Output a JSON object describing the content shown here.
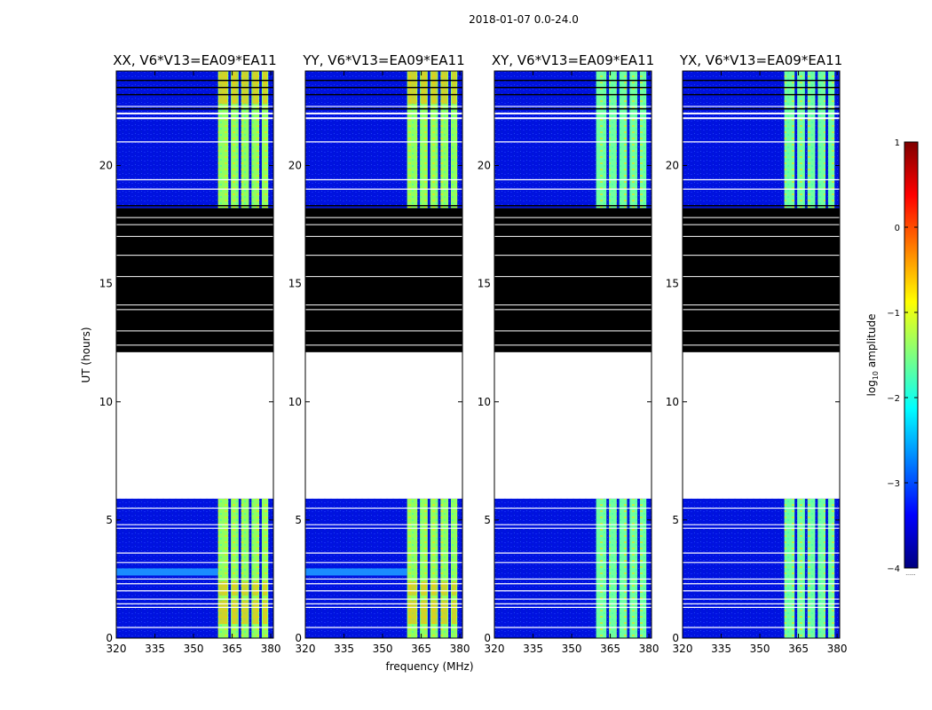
{
  "figure_title": "2018-01-07 0.0-24.0",
  "chart_data": {
    "type": "heatmap",
    "title": "2018-01-07 0.0-24.0",
    "xlabel": "frequency (MHz)",
    "ylabel": "UT (hours)",
    "xlim": [
      320,
      381
    ],
    "ylim": [
      0,
      24
    ],
    "xticks": [
      320,
      335,
      350,
      365,
      380
    ],
    "yticks": [
      0,
      5,
      10,
      15,
      20
    ],
    "panels": [
      {
        "title": "XX, V6*V13=EA09*EA11",
        "polarization": "XX"
      },
      {
        "title": "YY, V6*V13=EA09*EA11",
        "polarization": "YY"
      },
      {
        "title": "XY, V6*V13=EA09*EA11",
        "polarization": "XY"
      },
      {
        "title": "YX, V6*V13=EA09*EA11",
        "polarization": "YX"
      }
    ],
    "bright_band_mhz": [
      359.5,
      379
    ],
    "bright_band_subbands_mhz": [
      [
        359.5,
        363.5
      ],
      [
        364.5,
        367.5
      ],
      [
        368.5,
        371.5
      ],
      [
        372.5,
        375.5
      ],
      [
        376.5,
        379
      ]
    ],
    "data_ranges_hours": [
      [
        0,
        5.9
      ],
      [
        18.2,
        24
      ]
    ],
    "flagged_black_hours": [
      12.1,
      18.2
    ],
    "no_data_hours": [
      5.9,
      12.1
    ],
    "colorbar": {
      "label": "log",
      "label_sub": "10",
      "label_rest": " amplitude",
      "range": [
        -4,
        1
      ],
      "ticks": [
        "1",
        "0",
        "−1",
        "−2",
        "−3",
        "−4"
      ],
      "colormap": [
        "#00007f",
        "#0000ff",
        "#007fff",
        "#00ffff",
        "#7fff7f",
        "#ffff00",
        "#ff7f00",
        "#ff0000",
        "#7f0000"
      ],
      "footnote": "......"
    }
  }
}
